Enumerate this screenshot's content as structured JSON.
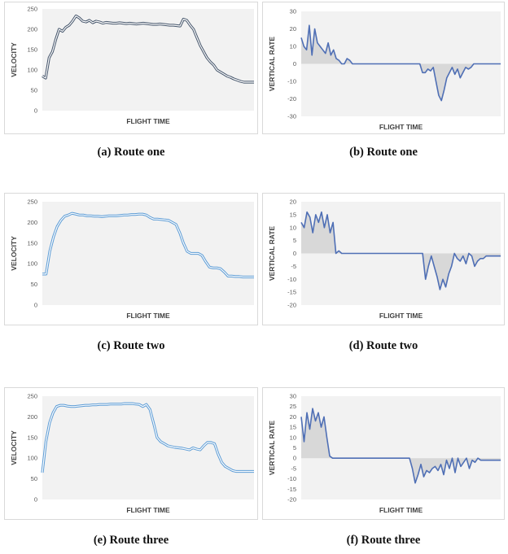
{
  "figures": [
    {
      "caption": "(a) Route one",
      "chart_data": {
        "type": "line",
        "xlabel": "FLIGHT TIME",
        "ylabel": "VELOCITY",
        "ylim": [
          0,
          250
        ],
        "yticks": [
          0,
          50,
          100,
          150,
          200,
          250
        ],
        "grid": false,
        "line_style": "double",
        "series": [
          {
            "values": [
              85,
              80,
              130,
              145,
              175,
              200,
              195,
              205,
              210,
              220,
              233,
              228,
              220,
              218,
              222,
              216,
              220,
              218,
              215,
              217,
              216,
              215,
              215,
              216,
              215,
              214,
              215,
              214,
              213,
              214,
              215,
              214,
              213,
              212,
              212,
              213,
              212,
              211,
              210,
              210,
              209,
              208,
              225,
              222,
              210,
              200,
              180,
              160,
              145,
              130,
              120,
              112,
              100,
              95,
              90,
              85,
              82,
              78,
              75,
              72,
              70,
              70,
              70,
              70
            ]
          }
        ]
      }
    },
    {
      "caption": "(b) Route one",
      "chart_data": {
        "type": "area",
        "xlabel": "FLIGHT TIME",
        "ylabel": "VERTICAL RATE",
        "ylim": [
          -30,
          30
        ],
        "yticks": [
          -30,
          -20,
          -10,
          0,
          10,
          20,
          30
        ],
        "grid": false,
        "series": [
          {
            "values": [
              15,
              10,
              8,
              22,
              5,
              20,
              12,
              10,
              8,
              6,
              12,
              5,
              8,
              3,
              2,
              0,
              0,
              3,
              2,
              0,
              0,
              0,
              0,
              0,
              0,
              0,
              0,
              0,
              0,
              0,
              0,
              0,
              0,
              0,
              0,
              0,
              0,
              0,
              0,
              0,
              0,
              0,
              0,
              0,
              0,
              -5,
              -5,
              -3,
              -4,
              -2,
              -10,
              -18,
              -21,
              -15,
              -8,
              -5,
              -2,
              -6,
              -3,
              -8,
              -5,
              -2,
              -3,
              -2,
              0,
              0,
              0,
              0,
              0,
              0,
              0,
              0,
              0,
              0,
              0
            ]
          }
        ]
      }
    },
    {
      "caption": "(c) Route two",
      "chart_data": {
        "type": "line",
        "xlabel": "FLIGHT TIME",
        "ylabel": "VELOCITY",
        "ylim": [
          0,
          250
        ],
        "yticks": [
          0,
          50,
          100,
          150,
          200,
          250
        ],
        "grid": false,
        "line_style": "double",
        "series": [
          {
            "values": [
              75,
              75,
              130,
              165,
              190,
              205,
              215,
              218,
              222,
              220,
              218,
              218,
              216,
              216,
              215,
              215,
              214,
              215,
              216,
              216,
              216,
              217,
              218,
              218,
              219,
              219,
              220,
              220,
              218,
              212,
              208,
              208,
              207,
              206,
              205,
              200,
              195,
              175,
              150,
              130,
              125,
              125,
              125,
              120,
              105,
              92,
              90,
              90,
              88,
              80,
              70,
              70,
              69,
              69,
              68,
              68,
              68,
              68
            ]
          }
        ]
      }
    },
    {
      "caption": "(d) Route two",
      "chart_data": {
        "type": "area",
        "xlabel": "FLIGHT TIME",
        "ylabel": "VERTICAL RATE",
        "ylim": [
          -20,
          20
        ],
        "yticks": [
          -20,
          -15,
          -10,
          -5,
          0,
          5,
          10,
          15,
          20
        ],
        "grid": false,
        "series": [
          {
            "values": [
              12,
              10,
              16,
              14,
              8,
              15,
              12,
              16,
              10,
              15,
              8,
              12,
              0,
              1,
              0,
              0,
              0,
              0,
              0,
              0,
              0,
              0,
              0,
              0,
              0,
              0,
              0,
              0,
              0,
              0,
              0,
              0,
              0,
              0,
              0,
              0,
              0,
              0,
              0,
              0,
              0,
              0,
              0,
              -10,
              -5,
              -1,
              -5,
              -9,
              -14,
              -10,
              -13,
              -8,
              -5,
              0,
              -2,
              -3,
              -1,
              -4,
              0,
              -1,
              -5,
              -3,
              -2,
              -2,
              -1,
              -1,
              -1,
              -1,
              -1,
              -1
            ]
          }
        ]
      }
    },
    {
      "caption": "(e) Route three",
      "chart_data": {
        "type": "line",
        "xlabel": "FLIGHT TIME",
        "ylabel": "VELOCITY",
        "ylim": [
          0,
          250
        ],
        "yticks": [
          0,
          50,
          100,
          150,
          200,
          250
        ],
        "grid": false,
        "line_style": "double",
        "series": [
          {
            "values": [
              65,
              140,
              185,
              210,
              225,
              228,
              228,
              226,
              225,
              225,
              226,
              227,
              228,
              228,
              229,
              229,
              230,
              230,
              230,
              231,
              231,
              231,
              231,
              232,
              232,
              232,
              231,
              230,
              225,
              230,
              218,
              185,
              150,
              140,
              135,
              130,
              128,
              126,
              125,
              124,
              122,
              120,
              125,
              122,
              120,
              130,
              138,
              138,
              135,
              110,
              90,
              80,
              75,
              70,
              68,
              68,
              68,
              68,
              68,
              68
            ]
          }
        ]
      }
    },
    {
      "caption": "(f) Route three",
      "chart_data": {
        "type": "area",
        "xlabel": "FLIGHT TIME",
        "ylabel": "VERTICAL RATE",
        "ylim": [
          -20,
          30
        ],
        "yticks": [
          -20,
          -15,
          -10,
          -5,
          0,
          5,
          10,
          15,
          20,
          25,
          30
        ],
        "grid": false,
        "series": [
          {
            "values": [
              20,
              8,
              22,
              14,
              24,
              18,
              22,
              15,
              20,
              10,
              1,
              0,
              0,
              0,
              0,
              0,
              0,
              0,
              0,
              0,
              0,
              0,
              0,
              0,
              0,
              0,
              0,
              0,
              0,
              0,
              0,
              0,
              0,
              0,
              0,
              0,
              0,
              0,
              0,
              -5,
              -12,
              -8,
              -3,
              -9,
              -6,
              -7,
              -5,
              -4,
              -6,
              -3,
              -8,
              -1,
              -5,
              0,
              -7,
              0,
              -4,
              -2,
              0,
              -5,
              -1,
              -2,
              0,
              -1,
              -1,
              -1,
              -1,
              -1,
              -1,
              -1,
              -1
            ]
          }
        ]
      }
    }
  ],
  "colors": {
    "plot_bg": "#f2f2f2",
    "line_dark": "#44546a",
    "line_light": "#5b9bd5",
    "line_mid": "#4f6fb5",
    "area_fill": "#d4d4d4"
  }
}
